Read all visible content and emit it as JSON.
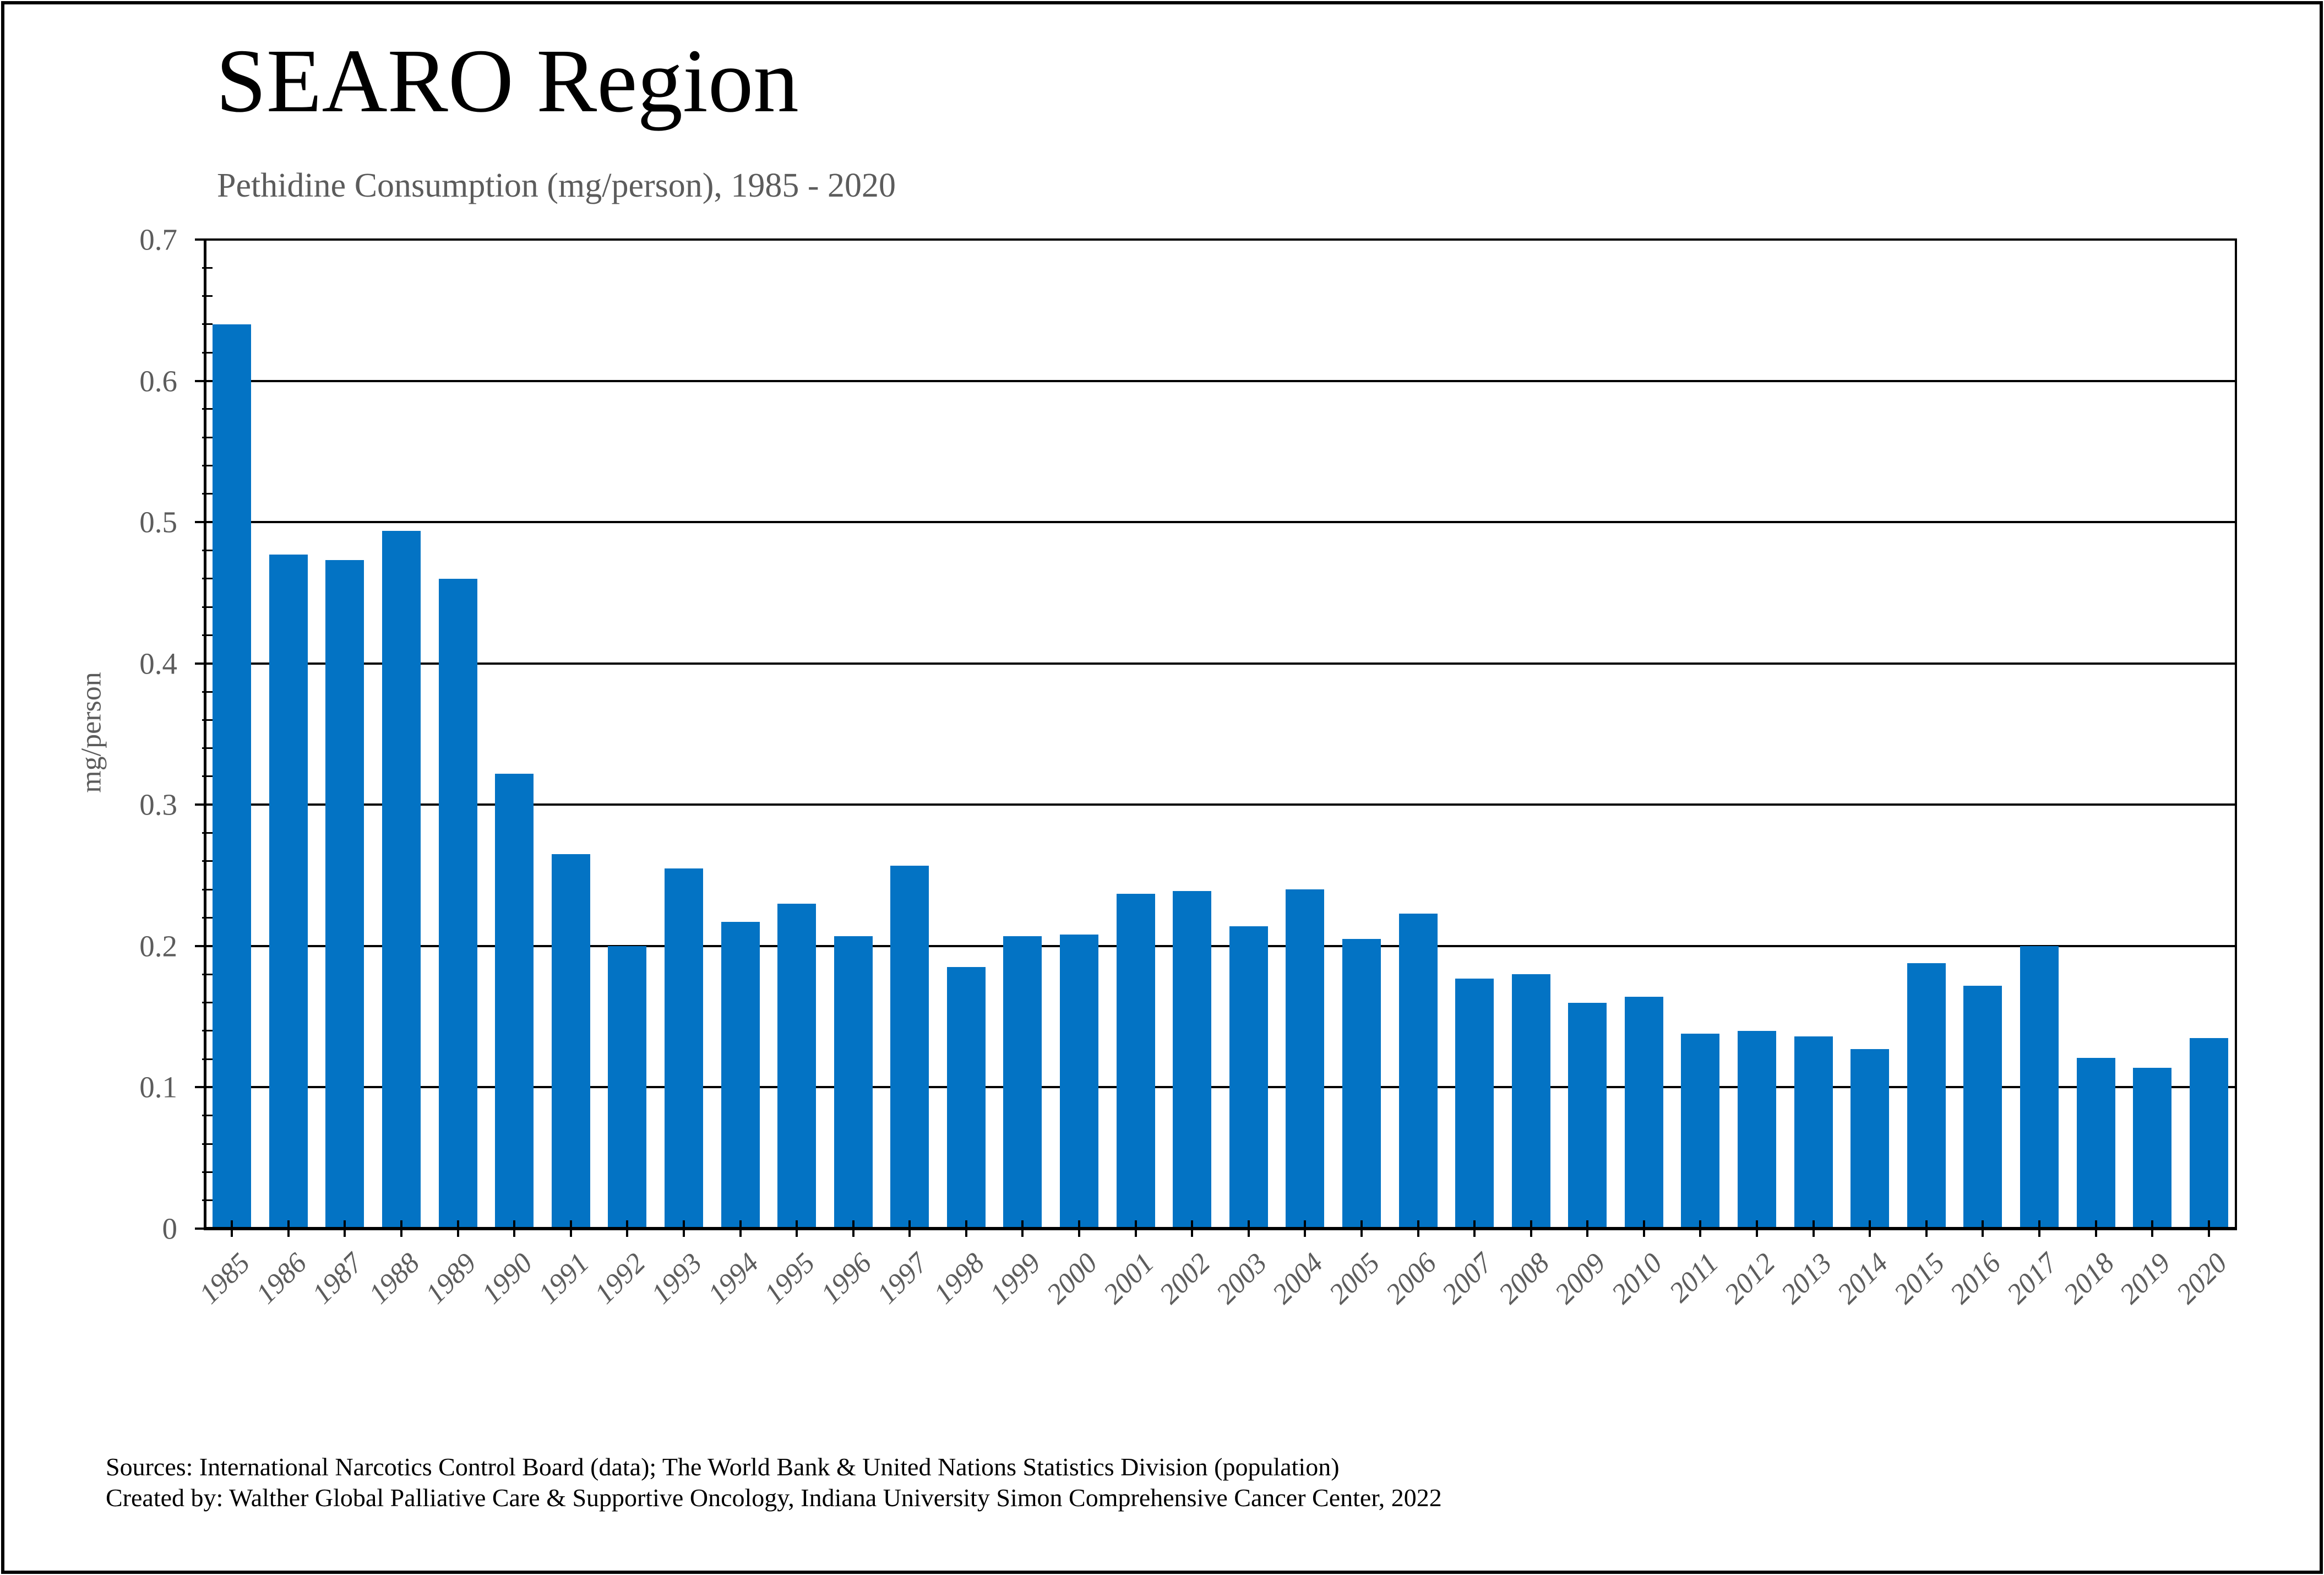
{
  "header": {
    "title": "SEARO Region",
    "subtitle": "Pethidine Consumption (mg/person), 1985 - 2020"
  },
  "footer": {
    "sources": "Sources: International Narcotics Control Board (data); The World Bank & United Nations Statistics Division (population)",
    "credits": "Created by: Walther Global Palliative Care & Supportive Oncology, Indiana University Simon Comprehensive Cancer Center, 2022"
  },
  "colors": {
    "bar": "#0373C4",
    "axis_line": "#000000",
    "tick_text": "#5c5c5c",
    "title_text": "#000000"
  },
  "chart_data": {
    "type": "bar",
    "title": "SEARO Region",
    "subtitle": "Pethidine Consumption (mg/person), 1985 - 2020",
    "xlabel": "",
    "ylabel": "mg/person",
    "ylim": [
      0,
      0.7
    ],
    "ytick_interval": 0.1,
    "ytick_minor_interval": 0.02,
    "grid": true,
    "legend": false,
    "categories": [
      "1985",
      "1986",
      "1987",
      "1988",
      "1989",
      "1990",
      "1991",
      "1992",
      "1993",
      "1994",
      "1995",
      "1996",
      "1997",
      "1998",
      "1999",
      "2000",
      "2001",
      "2002",
      "2003",
      "2004",
      "2005",
      "2006",
      "2007",
      "2008",
      "2009",
      "2010",
      "2011",
      "2012",
      "2013",
      "2014",
      "2015",
      "2016",
      "2017",
      "2018",
      "2019",
      "2020"
    ],
    "values": [
      0.64,
      0.477,
      0.473,
      0.494,
      0.46,
      0.322,
      0.265,
      0.2,
      0.255,
      0.217,
      0.23,
      0.207,
      0.257,
      0.185,
      0.207,
      0.208,
      0.237,
      0.239,
      0.214,
      0.24,
      0.205,
      0.223,
      0.177,
      0.18,
      0.16,
      0.164,
      0.138,
      0.14,
      0.136,
      0.127,
      0.188,
      0.172,
      0.2,
      0.121,
      0.114,
      0.135
    ]
  }
}
